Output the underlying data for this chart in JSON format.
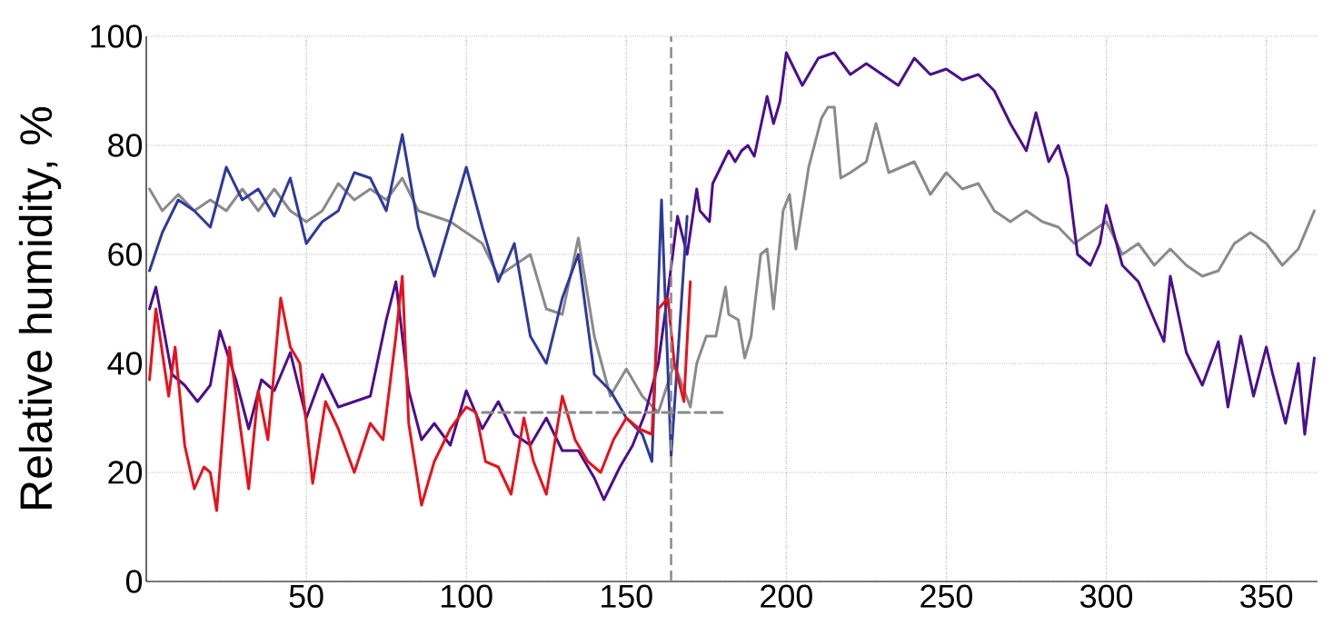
{
  "chart_data": {
    "type": "line",
    "ylabel": "Relative humidity, %",
    "xlim": [
      0,
      366
    ],
    "ylim": [
      0,
      100
    ],
    "xticks": [
      50,
      100,
      150,
      200,
      250,
      300,
      350
    ],
    "yticks": [
      0,
      20,
      40,
      60,
      80,
      100
    ],
    "grid": true,
    "line_style": "solid",
    "series": [
      {
        "color": "#8a8a8a",
        "x": [
          1,
          5,
          10,
          15,
          20,
          25,
          30,
          35,
          40,
          45,
          50,
          55,
          60,
          65,
          70,
          75,
          80,
          85,
          90,
          95,
          100,
          105,
          110,
          115,
          120,
          125,
          130,
          135,
          140,
          145,
          150,
          155,
          160,
          165,
          170,
          172,
          175,
          178,
          181,
          182,
          185,
          187,
          189,
          192,
          194,
          196,
          199,
          201,
          203,
          207,
          211,
          213,
          215,
          217,
          220,
          225,
          228,
          232,
          240,
          245,
          250,
          255,
          260,
          265,
          270,
          275,
          280,
          285,
          290,
          295,
          300,
          305,
          310,
          315,
          320,
          325,
          330,
          335,
          340,
          345,
          350,
          355,
          360,
          365
        ],
        "values": [
          72,
          68,
          71,
          68,
          70,
          68,
          72,
          68,
          72,
          68,
          66,
          68,
          73,
          70,
          72,
          70,
          74,
          68,
          67,
          66,
          64,
          62,
          56,
          58,
          60,
          50,
          49,
          63,
          45,
          34,
          39,
          34,
          31,
          40,
          32,
          40,
          45,
          45,
          54,
          49,
          48,
          41,
          45,
          60,
          61,
          50,
          68,
          71,
          61,
          76,
          85,
          87,
          87,
          74,
          75,
          77,
          84,
          75,
          77,
          71,
          75,
          72,
          73,
          68,
          66,
          68,
          66,
          65,
          62,
          64,
          66,
          60,
          62,
          58,
          61,
          58,
          56,
          57,
          62,
          64,
          62,
          58,
          61,
          68
        ]
      },
      {
        "color": "#4b0f8c",
        "x": [
          1,
          3,
          8,
          12,
          16,
          20,
          23,
          28,
          32,
          36,
          40,
          45,
          50,
          55,
          60,
          65,
          70,
          75,
          78,
          82,
          86,
          90,
          95,
          100,
          105,
          110,
          115,
          120,
          125,
          130,
          135,
          140,
          143,
          148,
          152,
          156,
          160,
          163,
          166,
          169,
          172,
          173,
          176,
          177,
          182,
          184,
          186,
          188,
          190,
          194,
          196,
          198,
          200,
          205,
          210,
          215,
          220,
          225,
          230,
          235,
          240,
          245,
          250,
          255,
          260,
          265,
          270,
          275,
          278,
          282,
          285,
          288,
          291,
          295,
          298,
          300,
          305,
          310,
          315,
          318,
          320,
          325,
          330,
          335,
          338,
          342,
          346,
          350,
          352,
          356,
          360,
          362,
          365
        ],
        "values": [
          50,
          54,
          38,
          36,
          33,
          36,
          46,
          37,
          28,
          37,
          35,
          42,
          30,
          38,
          32,
          33,
          34,
          48,
          55,
          35,
          26,
          29,
          25,
          35,
          28,
          33,
          27,
          25,
          30,
          24,
          24,
          19,
          15,
          21,
          25,
          31,
          40,
          53,
          67,
          60,
          72,
          68,
          66,
          73,
          79,
          77,
          79,
          80,
          78,
          89,
          84,
          88,
          97,
          91,
          96,
          97,
          93,
          95,
          93,
          91,
          96,
          93,
          94,
          92,
          93,
          90,
          84,
          79,
          86,
          77,
          80,
          74,
          60,
          58,
          62,
          69,
          58,
          55,
          48,
          44,
          56,
          42,
          36,
          44,
          32,
          45,
          34,
          43,
          38,
          29,
          40,
          27,
          41
        ]
      },
      {
        "color": "#2e3a9a",
        "x": [
          1,
          5,
          10,
          15,
          20,
          25,
          30,
          35,
          40,
          45,
          50,
          55,
          60,
          65,
          70,
          75,
          80,
          85,
          90,
          95,
          100,
          105,
          110,
          115,
          120,
          125,
          130,
          135,
          140,
          145,
          150,
          155,
          158,
          161,
          164,
          169
        ],
        "values": [
          57,
          64,
          70,
          68,
          65,
          76,
          70,
          72,
          67,
          74,
          62,
          66,
          68,
          75,
          74,
          68,
          82,
          65,
          56,
          66,
          76,
          65,
          55,
          62,
          45,
          40,
          52,
          60,
          38,
          35,
          30,
          27,
          22,
          70,
          23,
          67
        ]
      },
      {
        "color": "#e8111b",
        "x": [
          1,
          3,
          7,
          9,
          12,
          15,
          18,
          20,
          22,
          26,
          29,
          32,
          35,
          38,
          42,
          45,
          48,
          52,
          56,
          60,
          65,
          70,
          74,
          78,
          80,
          82,
          86,
          90,
          95,
          100,
          103,
          106,
          110,
          114,
          118,
          121,
          125,
          130,
          134,
          138,
          142,
          146,
          150,
          154,
          158,
          160,
          163,
          165,
          168,
          170
        ],
        "values": [
          37,
          50,
          34,
          43,
          25,
          17,
          21,
          20,
          13,
          43,
          30,
          17,
          35,
          26,
          52,
          43,
          40,
          18,
          33,
          28,
          20,
          29,
          26,
          45,
          56,
          29,
          14,
          22,
          28,
          32,
          31,
          22,
          21,
          16,
          30,
          22,
          16,
          34,
          26,
          22,
          20,
          26,
          30,
          28,
          27,
          50,
          52,
          40,
          33,
          55
        ]
      },
      {
        "color": "#8a8a8a",
        "line_style": "dashed",
        "x": [
          105,
          180
        ],
        "values": [
          31,
          31
        ]
      }
    ],
    "ref_lines": [
      {
        "axis": "x",
        "value": 164,
        "color": "#8a8a8a",
        "line_style": "dashed"
      }
    ]
  }
}
